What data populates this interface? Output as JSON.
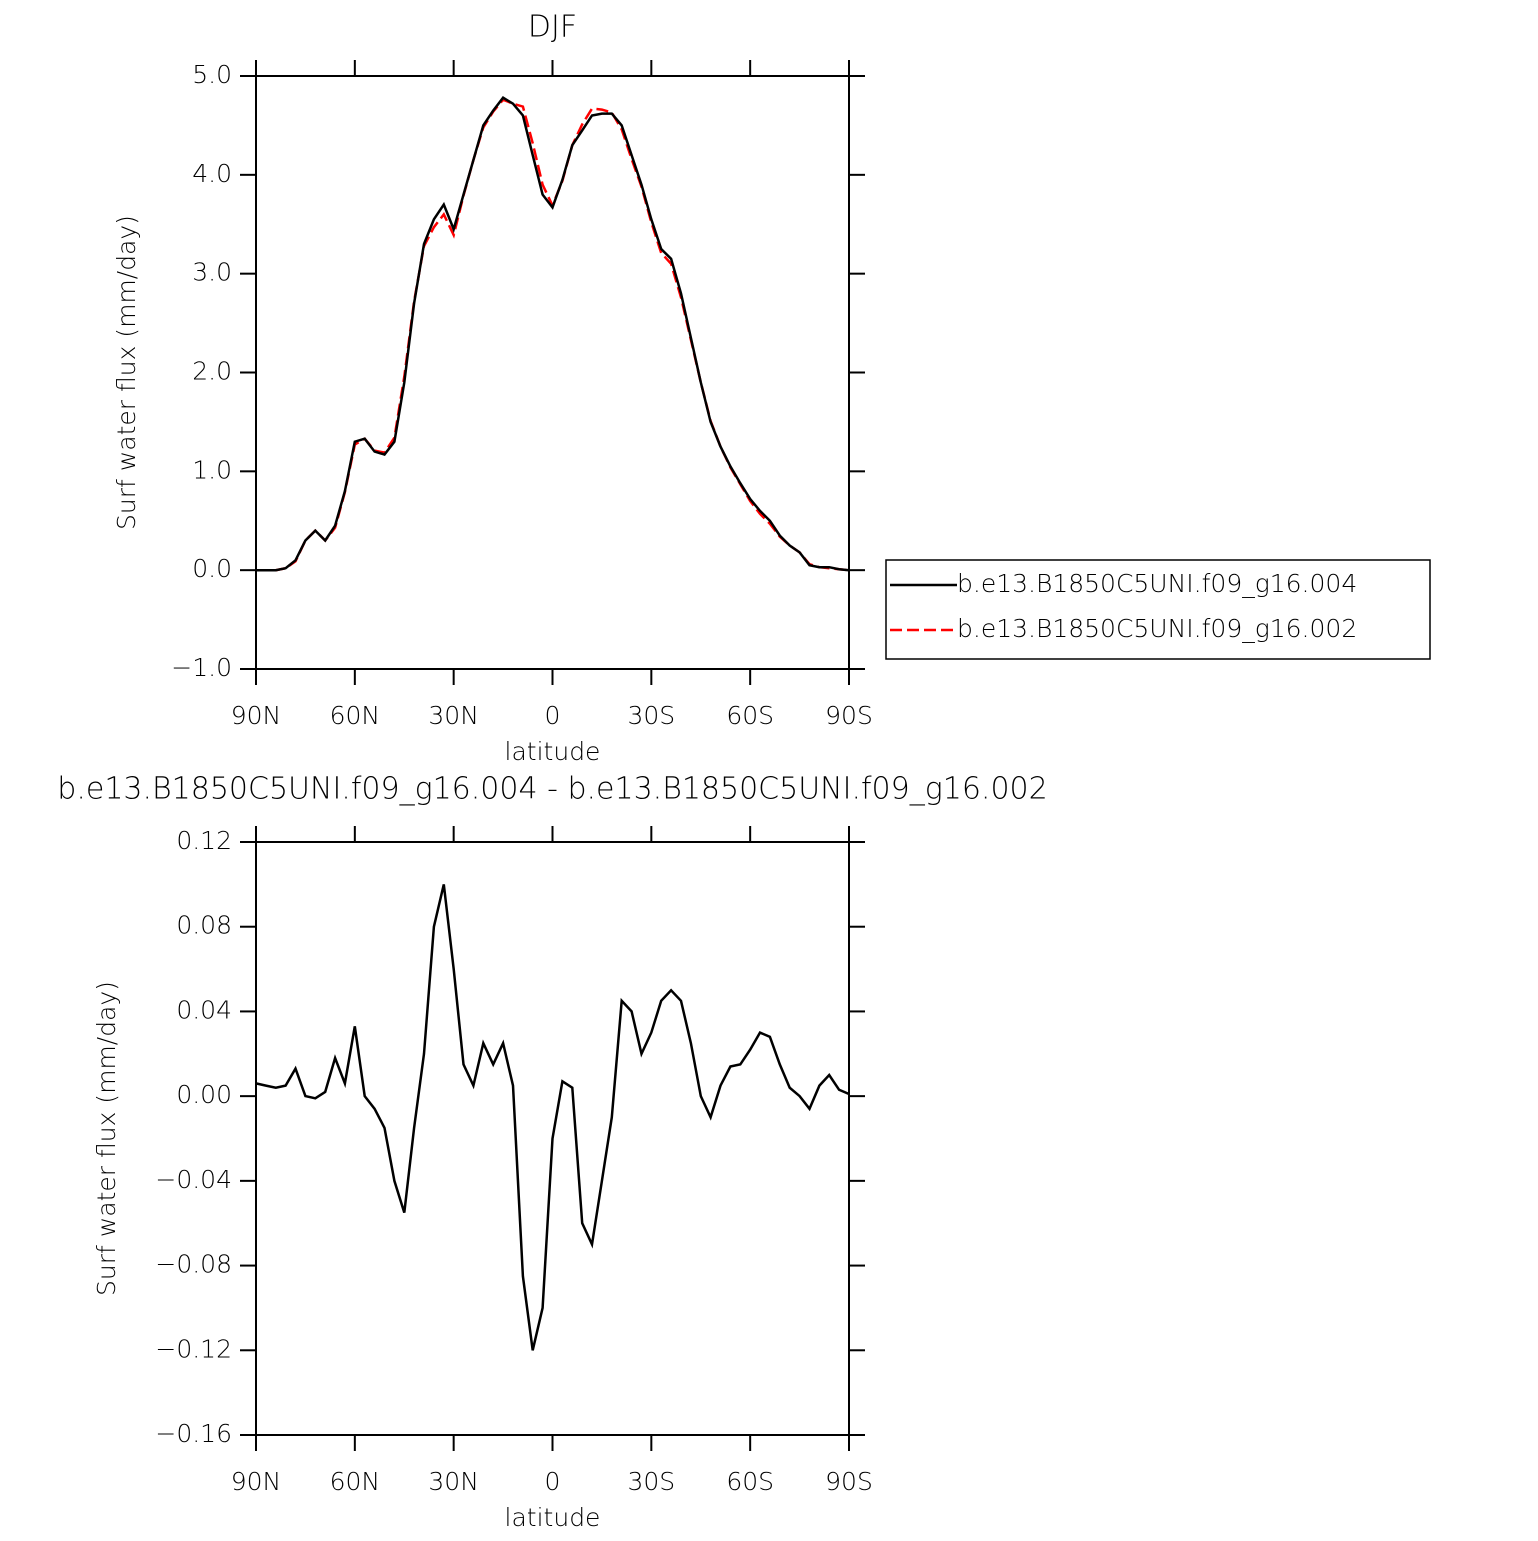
{
  "chart_data": [
    {
      "type": "line",
      "title": "DJF",
      "x_label": "latitude",
      "y_label": "Surf water flux (mm/day)",
      "x": [
        90,
        87,
        84,
        81,
        78,
        75,
        72,
        69,
        66,
        63,
        60,
        57,
        54,
        51,
        48,
        45,
        42,
        39,
        36,
        33,
        30,
        27,
        24,
        21,
        18,
        15,
        12,
        9,
        6,
        3,
        0,
        -3,
        -6,
        -9,
        -12,
        -15,
        -18,
        -21,
        -24,
        -27,
        -30,
        -33,
        -36,
        -39,
        -42,
        -45,
        -48,
        -51,
        -54,
        -57,
        -60,
        -63,
        -66,
        -69,
        -72,
        -75,
        -78,
        -81,
        -84,
        -87,
        -90
      ],
      "xlim": [
        90,
        -90
      ],
      "xticks": [
        {
          "value": 90,
          "label": "90N"
        },
        {
          "value": 60,
          "label": "60N"
        },
        {
          "value": 30,
          "label": "30N"
        },
        0,
        {
          "value": -30,
          "label": "30S"
        },
        {
          "value": -60,
          "label": "60S"
        },
        {
          "value": -90,
          "label": "90S"
        }
      ],
      "ylim": [
        -1.0,
        5.0
      ],
      "yticks": [
        {
          "value": -1,
          "label": "−1.0"
        },
        {
          "value": 0,
          "label": "0.0"
        },
        {
          "value": 1,
          "label": "1.0"
        },
        {
          "value": 2,
          "label": "2.0"
        },
        {
          "value": 3,
          "label": "3.0"
        },
        {
          "value": 4,
          "label": "4.0"
        },
        {
          "value": 5,
          "label": "5.0"
        }
      ],
      "legend": "outside-right",
      "series": [
        {
          "name": "b.e13.B1850C5UNI.f09_g16.002",
          "color": "#ff0000",
          "style": "dashed",
          "values": [
            0,
            0,
            0,
            0.02,
            0.09,
            0.3,
            0.4,
            0.3,
            0.43,
            0.79,
            1.27,
            1.33,
            1.21,
            1.19,
            1.34,
            1.96,
            2.72,
            3.28,
            3.47,
            3.6,
            3.39,
            3.79,
            4.15,
            4.48,
            4.64,
            4.76,
            4.72,
            4.69,
            4.32,
            3.9,
            3.69,
            3.94,
            4.3,
            4.51,
            4.67,
            4.66,
            4.63,
            4.46,
            4.16,
            3.88,
            3.52,
            3.21,
            3.1,
            2.76,
            2.33,
            1.9,
            1.51,
            1.25,
            1.04,
            0.87,
            0.7,
            0.57,
            0.47,
            0.34,
            0.25,
            0.18,
            0.06,
            0.03,
            0.02,
            0.01,
            0
          ]
        },
        {
          "name": "b.e13.B1850C5UNI.f09_g16.004",
          "color": "#000000",
          "style": "solid",
          "values": [
            0,
            0,
            0,
            0.02,
            0.1,
            0.3,
            0.4,
            0.3,
            0.45,
            0.8,
            1.3,
            1.33,
            1.2,
            1.17,
            1.3,
            1.9,
            2.7,
            3.3,
            3.55,
            3.7,
            3.45,
            3.8,
            4.15,
            4.5,
            4.65,
            4.78,
            4.72,
            4.6,
            4.2,
            3.8,
            3.67,
            3.95,
            4.3,
            4.45,
            4.6,
            4.62,
            4.62,
            4.5,
            4.2,
            3.9,
            3.55,
            3.25,
            3.15,
            2.8,
            2.35,
            1.9,
            1.5,
            1.25,
            1.05,
            0.88,
            0.72,
            0.6,
            0.5,
            0.35,
            0.25,
            0.18,
            0.05,
            0.03,
            0.03,
            0.01,
            0
          ]
        }
      ]
    },
    {
      "type": "line",
      "title": "b.e13.B1850C5UNI.f09_g16.004 - b.e13.B1850C5UNI.f09_g16.002",
      "x_label": "latitude",
      "y_label": "Surf water flux (mm/day)",
      "x": [
        90,
        87,
        84,
        81,
        78,
        75,
        72,
        69,
        66,
        63,
        60,
        57,
        54,
        51,
        48,
        45,
        42,
        39,
        36,
        33,
        30,
        27,
        24,
        21,
        18,
        15,
        12,
        9,
        6,
        3,
        0,
        -3,
        -6,
        -9,
        -12,
        -15,
        -18,
        -21,
        -24,
        -27,
        -30,
        -33,
        -36,
        -39,
        -42,
        -45,
        -48,
        -51,
        -54,
        -57,
        -60,
        -63,
        -66,
        -69,
        -72,
        -75,
        -78,
        -81,
        -84,
        -87,
        -90
      ],
      "xlim": [
        90,
        -90
      ],
      "xticks": [
        {
          "value": 90,
          "label": "90N"
        },
        {
          "value": 60,
          "label": "60N"
        },
        {
          "value": 30,
          "label": "30N"
        },
        0,
        {
          "value": -30,
          "label": "30S"
        },
        {
          "value": -60,
          "label": "60S"
        },
        {
          "value": -90,
          "label": "90S"
        }
      ],
      "ylim": [
        -0.16,
        0.12
      ],
      "yticks": [
        {
          "value": -0.16,
          "label": "−0.16"
        },
        {
          "value": -0.12,
          "label": "−0.12"
        },
        {
          "value": -0.08,
          "label": "−0.08"
        },
        {
          "value": -0.04,
          "label": "−0.04"
        },
        {
          "value": 0,
          "label": "0.00"
        },
        0.04,
        0.08,
        0.12
      ],
      "series": [
        {
          "color": "#000000",
          "style": "solid",
          "values": [
            0.006,
            0.005,
            0.004,
            0.005,
            0.013,
            0.0,
            -0.001,
            0.002,
            0.018,
            0.006,
            0.033,
            0.0,
            -0.006,
            -0.015,
            -0.04,
            -0.055,
            -0.015,
            0.02,
            0.08,
            0.1,
            0.06,
            0.015,
            0.005,
            0.025,
            0.015,
            0.025,
            0.005,
            -0.085,
            -0.12,
            -0.1,
            -0.02,
            0.007,
            0.004,
            -0.06,
            -0.07,
            -0.04,
            -0.01,
            0.045,
            0.04,
            0.02,
            0.03,
            0.045,
            0.05,
            0.045,
            0.025,
            0.0,
            -0.01,
            0.005,
            0.014,
            0.015,
            0.022,
            0.03,
            0.028,
            0.015,
            0.004,
            0.0,
            -0.006,
            0.005,
            0.01,
            0.003,
            0.001
          ]
        }
      ]
    }
  ]
}
